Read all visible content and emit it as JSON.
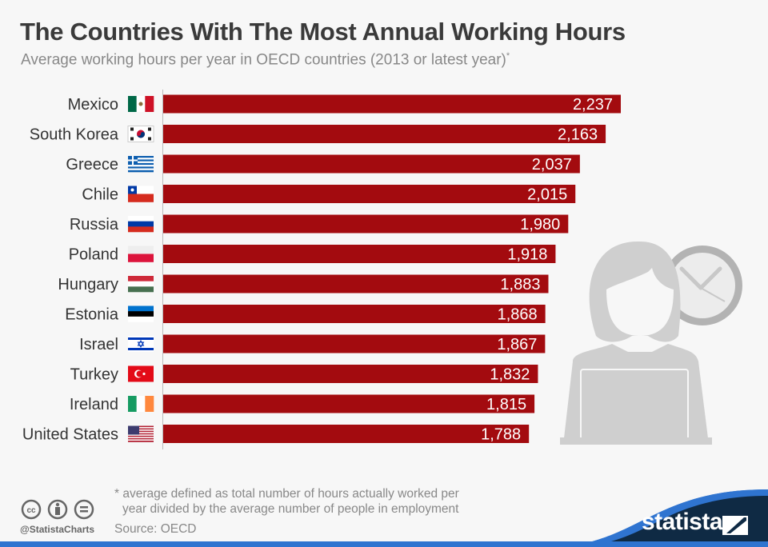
{
  "title": "The Countries With The Most Annual Working Hours",
  "subtitle": "Average working hours per year in OECD countries (2013 or latest year)",
  "subtitle_mark": "*",
  "footnote_line1": "* average defined as total number of hours actually worked per",
  "footnote_line2": "year divided by the average number of people in employment",
  "source": "Source: OECD",
  "handle": "@StatistaCharts",
  "logo_text": "statista",
  "colors": {
    "bar": "#a30b0f",
    "text": "#333333",
    "footer_navy": "#0f2a44",
    "footer_blue": "#2f74d0"
  },
  "chart_data": {
    "type": "bar",
    "orientation": "horizontal",
    "categories": [
      "Mexico",
      "South Korea",
      "Greece",
      "Chile",
      "Russia",
      "Poland",
      "Hungary",
      "Estonia",
      "Israel",
      "Turkey",
      "Ireland",
      "United States"
    ],
    "values": [
      2237,
      2163,
      2037,
      2015,
      1980,
      1918,
      1883,
      1868,
      1867,
      1832,
      1815,
      1788
    ],
    "value_labels": [
      "2,237",
      "2,163",
      "2,037",
      "2,015",
      "1,980",
      "1,918",
      "1,883",
      "1,868",
      "1,867",
      "1,832",
      "1,815",
      "1,788"
    ],
    "flags": [
      "mexico-flag-icon",
      "south-korea-flag-icon",
      "greece-flag-icon",
      "chile-flag-icon",
      "russia-flag-icon",
      "poland-flag-icon",
      "hungary-flag-icon",
      "estonia-flag-icon",
      "israel-flag-icon",
      "turkey-flag-icon",
      "ireland-flag-icon",
      "united-states-flag-icon"
    ],
    "xlim": [
      0,
      2237
    ],
    "grid": false
  }
}
